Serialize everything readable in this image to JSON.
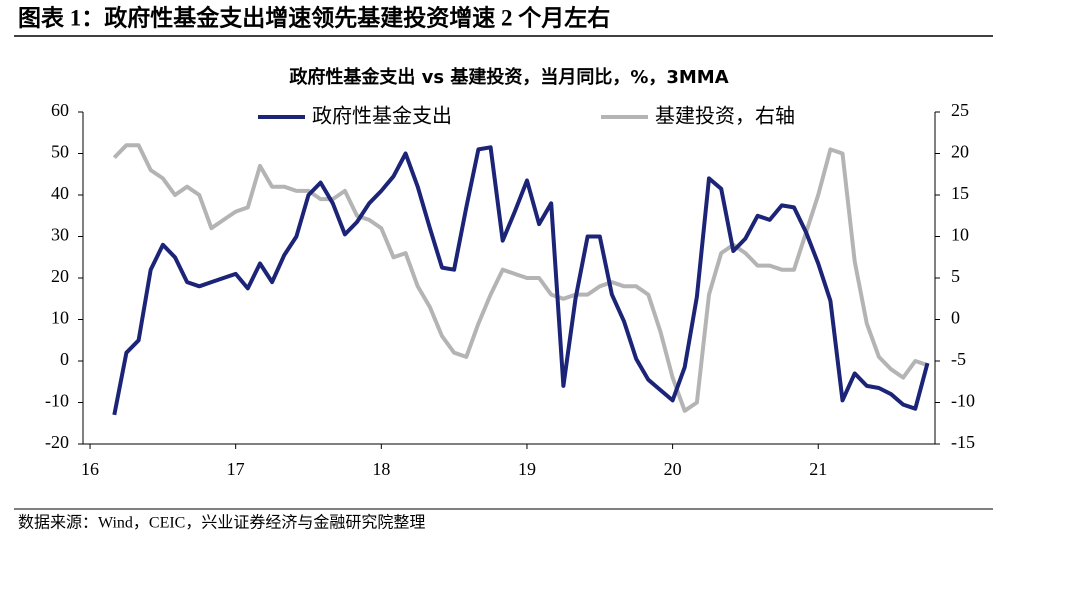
{
  "header": {
    "title": "图表 1：政府性基金支出增速领先基建投资增速 2 个月左右"
  },
  "chart_data": {
    "type": "line",
    "title": "政府性基金支出 vs 基建投资，当月同比，%，3MMA",
    "categories": [
      "16",
      null,
      null,
      null,
      null,
      null,
      null,
      null,
      null,
      null,
      null,
      null,
      "17",
      null,
      null,
      null,
      null,
      null,
      null,
      null,
      null,
      null,
      null,
      null,
      "18",
      null,
      null,
      null,
      null,
      null,
      null,
      null,
      null,
      null,
      null,
      null,
      "19",
      null,
      null,
      null,
      null,
      null,
      null,
      null,
      null,
      null,
      null,
      null,
      "20",
      null,
      null,
      null,
      null,
      null,
      null,
      null,
      null,
      null,
      null,
      null,
      "21",
      null,
      null,
      null,
      null,
      null,
      null,
      null,
      null,
      null
    ],
    "series": [
      {
        "name": "政府性基金支出",
        "color": "#1c2478",
        "axis": "y",
        "values": [
          null,
          null,
          -13,
          2,
          5,
          22,
          28,
          25,
          19,
          18,
          19,
          20,
          21,
          17.5,
          23.5,
          19,
          25.5,
          30,
          40,
          43,
          38,
          30.5,
          33.5,
          38,
          41,
          44.5,
          50,
          42,
          32,
          22.5,
          22,
          37,
          51,
          51.5,
          29,
          36,
          43.5,
          33,
          38,
          -6,
          15,
          30,
          30,
          16,
          9.5,
          0.5,
          -4.5,
          -7,
          -9.5,
          -1.5,
          15.5,
          44,
          41.5,
          26.5,
          29.5,
          35,
          34,
          37.5,
          37,
          31,
          23.5,
          14.5,
          -9.5,
          -3,
          -6,
          -6.5,
          -8,
          -10.5,
          -11.5,
          -0.5
        ]
      },
      {
        "name": "基建投资，右轴",
        "color": "#b4b4b4",
        "axis": "y2",
        "values": [
          null,
          null,
          19.5,
          21,
          21,
          18,
          17,
          15,
          16,
          15,
          11,
          12,
          13,
          13.5,
          18.5,
          16,
          16,
          15.5,
          15.5,
          14.5,
          14.5,
          15.5,
          12.5,
          12,
          11,
          7.5,
          8,
          4,
          1.5,
          -2,
          -4,
          -4.5,
          -0.5,
          3,
          6,
          5.5,
          5,
          5,
          3,
          2.5,
          3,
          3,
          4,
          4.5,
          4,
          4,
          3,
          -1.5,
          -7,
          -11,
          -10,
          3,
          8,
          9,
          8,
          6.5,
          6.5,
          6,
          6,
          10.5,
          15,
          20.5,
          20,
          7,
          -0.5,
          -4.5,
          -6,
          -7,
          -5,
          -5.5
        ]
      }
    ],
    "ylim": [
      -20,
      60
    ],
    "yticks": [
      -20,
      -10,
      0,
      10,
      20,
      30,
      40,
      50,
      60
    ],
    "y2lim": [
      -15,
      25
    ],
    "y2ticks": [
      -15,
      -10,
      -5,
      0,
      5,
      10,
      15,
      20,
      25
    ],
    "legend": "top",
    "grid": false
  },
  "footer": {
    "source": "数据来源：Wind，CEIC，兴业证券经济与金融研究院整理"
  }
}
